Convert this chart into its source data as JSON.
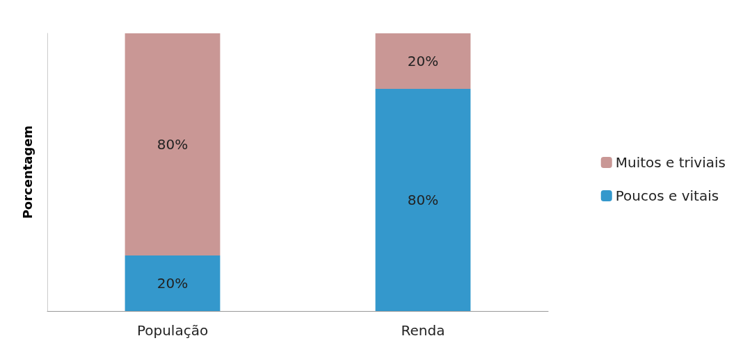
{
  "chart_data": {
    "type": "bar",
    "stacked": true,
    "ylabel": "Porcentagem",
    "categories": [
      "População",
      "Renda"
    ],
    "series": [
      {
        "name": "Poucos e vitais",
        "color": "#3498cc",
        "values": [
          20,
          80
        ],
        "value_labels": [
          "20%",
          "80%"
        ]
      },
      {
        "name": "Muitos e triviais",
        "color": "#c99795",
        "values": [
          80,
          20
        ],
        "value_labels": [
          "80%",
          "20%"
        ]
      }
    ],
    "legend": "right",
    "grid": false,
    "tick_labels": "x"
  }
}
